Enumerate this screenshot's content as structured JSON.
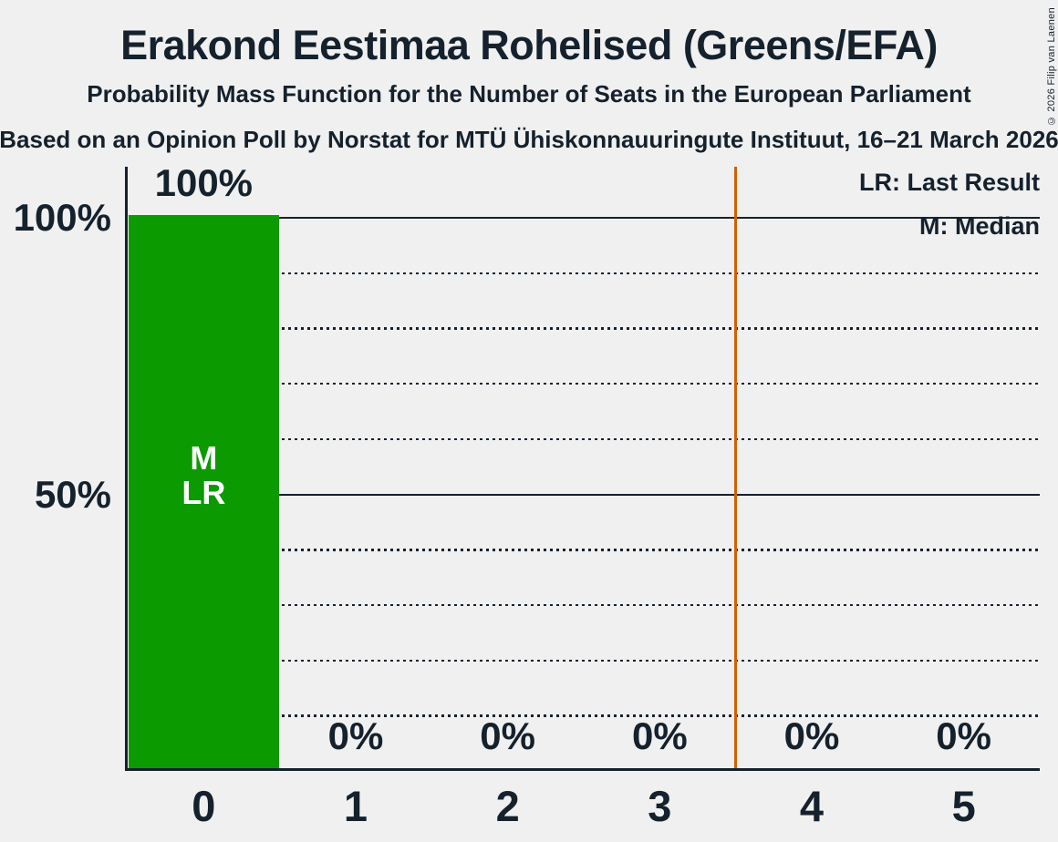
{
  "title": "Erakond Eestimaa Rohelised (Greens/EFA)",
  "subtitle": "Probability Mass Function for the Number of Seats in the European Parliament",
  "source_line": "Based on an Opinion Poll by Norstat for MTÜ Ühiskonnauuringute Instituut, 16–21 March 2026",
  "copyright": "© 2026 Filip van Laenen",
  "legend": {
    "lr": "LR: Last Result",
    "m": "M: Median"
  },
  "colors": {
    "background": "#F0F0F0",
    "text": "#15212D",
    "bar": "#0B9A00",
    "bar_annotation_text": "#FFFFFF",
    "majority_line": "#D55E00"
  },
  "chart_data": {
    "type": "bar",
    "title": "Erakond Eestimaa Rohelised (Greens/EFA)",
    "categories": [
      "0",
      "1",
      "2",
      "3",
      "4",
      "5"
    ],
    "values": [
      100,
      0,
      0,
      0,
      0,
      0
    ],
    "value_labels": [
      "100%",
      "0%",
      "0%",
      "0%",
      "0%",
      "0%"
    ],
    "bar_annotations": [
      {
        "category_index": 0,
        "lines": [
          "M",
          "LR"
        ]
      }
    ],
    "vertical_line_x": 3.5,
    "xlabel": "",
    "ylabel": "",
    "ylim": [
      0,
      100
    ],
    "grid": "horizontal only",
    "solid_gridlines_pct": [
      100,
      50
    ],
    "dotted_gridlines_pct": [
      90,
      80,
      70,
      60,
      40,
      30,
      20,
      10
    ],
    "y_axis_labels": [
      {
        "text": "100%",
        "value": 100
      },
      {
        "text": "50%",
        "value": 50
      }
    ],
    "legend_position": "top-right"
  }
}
